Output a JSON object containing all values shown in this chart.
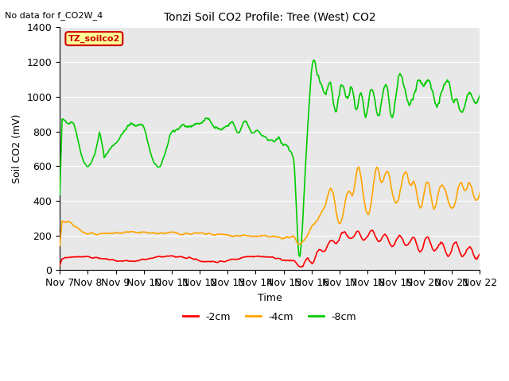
{
  "title": "Tonzi Soil CO2 Profile: Tree (West) CO2",
  "subtitle": "No data for f_CO2W_4",
  "ylabel": "Soil CO2 (mV)",
  "xlabel": "Time",
  "ylim": [
    0,
    1400
  ],
  "legend_box_label": "TZ_soilco2",
  "legend_box_color": "#cc0000",
  "legend_box_bg": "#ffff99",
  "plot_bg": "#e8e8e8",
  "series": [
    {
      "label": "-2cm",
      "color": "#ff0000"
    },
    {
      "label": "-4cm",
      "color": "#ffa500"
    },
    {
      "label": "-8cm",
      "color": "#00cc00"
    }
  ],
  "x_tick_labels": [
    "Nov 7",
    "Nov 8",
    "Nov 9",
    "Nov 10",
    "Nov 11",
    "Nov 12",
    "Nov 13",
    "Nov 14",
    "Nov 15",
    "Nov 16",
    "Nov 17",
    "Nov 18",
    "Nov 19",
    "Nov 20",
    "Nov 21",
    "Nov 22"
  ],
  "yticks": [
    0,
    200,
    400,
    600,
    800,
    1000,
    1200,
    1400
  ]
}
